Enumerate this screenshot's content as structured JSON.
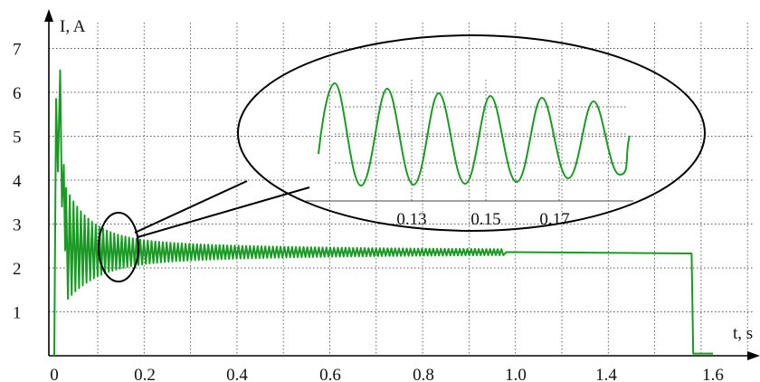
{
  "chart_data": {
    "type": "line",
    "xlabel": "t, s",
    "ylabel": "I, A",
    "x_ticks": [
      0,
      0.2,
      0.4,
      0.6,
      0.8,
      1.0,
      1.4,
      1.6
    ],
    "y_ticks": [
      1,
      2,
      3,
      4,
      5,
      6,
      7
    ],
    "ylim": [
      0,
      7.5
    ],
    "grid": true,
    "series": [
      {
        "color": "#1a9a24",
        "description_points": {
          "t": [
            0,
            0.005,
            0.01,
            0.02,
            0.03,
            0.05,
            0.1,
            0.2,
            0.4,
            0.6,
            0.8,
            0.97,
            1.5,
            1.56,
            1.565,
            1.6
          ],
          "I": [
            0,
            5.9,
            4.3,
            6.5,
            3.4,
            3.0,
            2.3,
            2.4,
            2.38,
            2.36,
            2.36,
            2.35,
            2.33,
            2.33,
            0.05,
            0.05
          ]
        }
      }
    ],
    "inset": {
      "x_ticks": [
        "0.13",
        "0.15",
        "0.17"
      ],
      "oscillation_peaks": 6
    }
  }
}
